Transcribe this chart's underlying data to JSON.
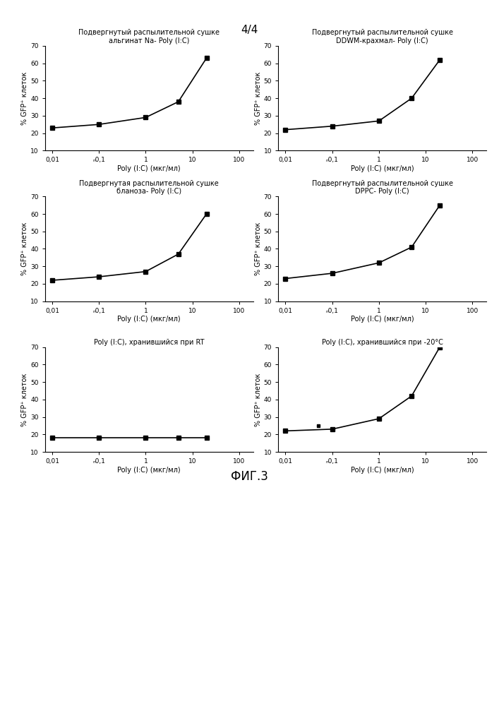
{
  "page_label": "4/4",
  "fig_label": "ФИГ.3",
  "subplot_titles": [
    [
      "Подвергнутый распылительной сушке",
      "альгинат Na- Poly (I:C)"
    ],
    [
      "Подвергнутый распылительной сушке",
      "DDWM-крахмал- Poly (I:C)"
    ],
    [
      "Подвергнутая распылительной сушке",
      "бланоза- Poly (I:C)"
    ],
    [
      "Подвергнутый распылительной сушке",
      "DPPC- Poly (I:C)"
    ],
    [
      "Poly (I:C), хранившийся при RT",
      ""
    ],
    [
      "Poly (I:C), хранившийся при -20°C",
      ""
    ]
  ],
  "xlabel": "Poly (I:C) (мкг/мл)",
  "ylabel": "% GFP⁺ клеток",
  "x_values": [
    0.01,
    0.1,
    1,
    5,
    20
  ],
  "y_data": [
    [
      23,
      25,
      29,
      38,
      63
    ],
    [
      22,
      24,
      27,
      40,
      62
    ],
    [
      22,
      24,
      27,
      37,
      60
    ],
    [
      23,
      26,
      32,
      41,
      65
    ],
    [
      18,
      18,
      18,
      18,
      18
    ],
    [
      22,
      23,
      29,
      42,
      70
    ]
  ],
  "ylim": [
    10,
    70
  ],
  "yticks": [
    10,
    20,
    30,
    40,
    50,
    60,
    70
  ],
  "xtick_labels": [
    "0,01",
    "ₙ0,1",
    "1",
    "10",
    "100"
  ],
  "xtick_values": [
    0.01,
    0.1,
    1,
    10,
    100
  ],
  "bg_color": "#ffffff",
  "line_color": "#000000",
  "marker": "s",
  "marker_size": 4,
  "line_width": 1.2,
  "title_fontsize": 7.0,
  "axis_label_fontsize": 7.0,
  "tick_fontsize": 6.5,
  "page_label_fontsize": 11,
  "fig_label_fontsize": 12,
  "scatter_point_6": [
    0.05,
    25
  ]
}
